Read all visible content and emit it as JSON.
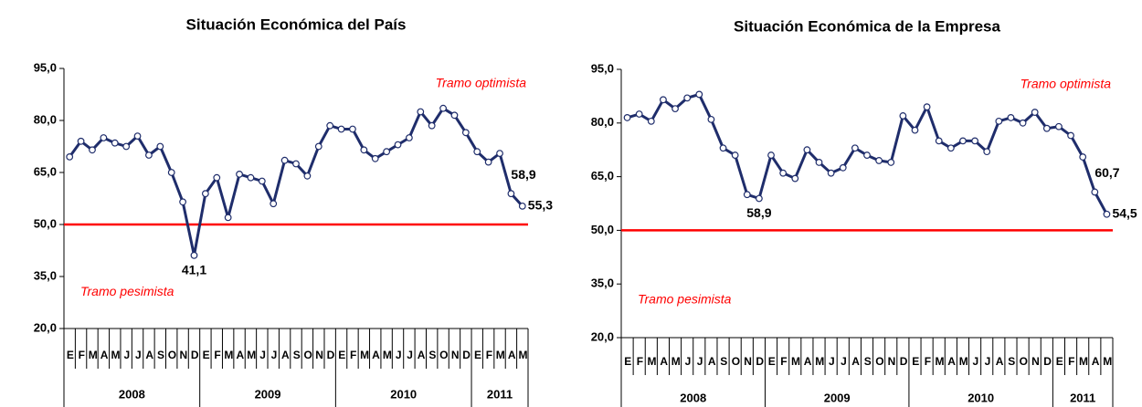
{
  "chart_data": [
    {
      "type": "line",
      "title": "Situación Económica del País",
      "category_groups": [
        {
          "label": "2008",
          "categories": [
            "E",
            "F",
            "M",
            "A",
            "M",
            "J",
            "J",
            "A",
            "S",
            "O",
            "N",
            "D"
          ]
        },
        {
          "label": "2009",
          "categories": [
            "E",
            "F",
            "M",
            "A",
            "M",
            "J",
            "J",
            "A",
            "S",
            "O",
            "N",
            "D"
          ]
        },
        {
          "label": "2010",
          "categories": [
            "E",
            "F",
            "M",
            "A",
            "M",
            "J",
            "J",
            "A",
            "S",
            "O",
            "N",
            "D"
          ]
        },
        {
          "label": "2011",
          "categories": [
            "E",
            "F",
            "M",
            "A",
            "M"
          ]
        }
      ],
      "values": [
        69.5,
        74,
        71.5,
        75,
        73.5,
        72.5,
        75.5,
        70,
        72.5,
        65,
        56.5,
        41.1,
        58.9,
        63.5,
        52,
        64.5,
        63.5,
        62.5,
        56,
        68.5,
        67.5,
        64,
        72.5,
        78.5,
        77.5,
        77.5,
        71.5,
        69,
        71,
        73,
        75,
        82.5,
        78.5,
        83.5,
        81.5,
        76.5,
        71,
        68,
        70.5,
        58.9,
        55.3
      ],
      "value_labels": [
        null,
        null,
        null,
        null,
        null,
        null,
        null,
        null,
        null,
        null,
        null,
        "41,1",
        null,
        null,
        null,
        null,
        null,
        null,
        null,
        null,
        null,
        null,
        null,
        null,
        null,
        null,
        null,
        null,
        null,
        null,
        null,
        null,
        null,
        null,
        null,
        null,
        null,
        null,
        null,
        "58,9",
        "55,3"
      ],
      "color": "#1f2d6b",
      "ylim": [
        20,
        95
      ],
      "yticks": [
        {
          "value": 20,
          "label": "20,0"
        },
        {
          "value": 35,
          "label": "35,0"
        },
        {
          "value": 50,
          "label": "50,0"
        },
        {
          "value": 65,
          "label": "65,0"
        },
        {
          "value": 80,
          "label": "80,0"
        },
        {
          "value": 95,
          "label": "95,0"
        }
      ],
      "reference_line": {
        "value": 50,
        "color": "#ff0000"
      },
      "annotations": [
        "Tramo optimista",
        "Tramo pesimista"
      ]
    },
    {
      "type": "line",
      "title": "Situación Económica de la Empresa",
      "category_groups": [
        {
          "label": "2008",
          "categories": [
            "E",
            "F",
            "M",
            "A",
            "M",
            "J",
            "J",
            "A",
            "S",
            "O",
            "N",
            "D"
          ]
        },
        {
          "label": "2009",
          "categories": [
            "E",
            "F",
            "M",
            "A",
            "M",
            "J",
            "J",
            "A",
            "S",
            "O",
            "N",
            "D"
          ]
        },
        {
          "label": "2010",
          "categories": [
            "E",
            "F",
            "M",
            "A",
            "M",
            "J",
            "J",
            "A",
            "S",
            "O",
            "N",
            "D"
          ]
        },
        {
          "label": "2011",
          "categories": [
            "E",
            "F",
            "M",
            "A",
            "M"
          ]
        }
      ],
      "values": [
        81.5,
        82.5,
        80.5,
        86.5,
        84,
        87,
        88,
        81,
        73,
        71,
        60,
        58.9,
        71,
        66,
        64.5,
        72.5,
        69,
        66,
        67.5,
        73,
        71,
        69.5,
        69,
        82,
        78,
        84.5,
        75,
        73,
        75,
        75,
        72,
        80.5,
        81.5,
        80,
        83,
        78.5,
        79,
        76.5,
        70.5,
        60.7,
        54.5
      ],
      "value_labels": [
        null,
        null,
        null,
        null,
        null,
        null,
        null,
        null,
        null,
        null,
        null,
        "58,9",
        null,
        null,
        null,
        null,
        null,
        null,
        null,
        null,
        null,
        null,
        null,
        null,
        null,
        null,
        null,
        null,
        null,
        null,
        null,
        null,
        null,
        null,
        null,
        null,
        null,
        null,
        null,
        "60,7",
        "54,5"
      ],
      "color": "#1f2d6b",
      "ylim": [
        20,
        95
      ],
      "yticks": [
        {
          "value": 20,
          "label": "20,0"
        },
        {
          "value": 35,
          "label": "35,0"
        },
        {
          "value": 50,
          "label": "50,0"
        },
        {
          "value": 65,
          "label": "65,0"
        },
        {
          "value": 80,
          "label": "80,0"
        },
        {
          "value": 95,
          "label": "95,0"
        }
      ],
      "reference_line": {
        "value": 50,
        "color": "#ff0000"
      },
      "annotations": [
        "Tramo optimista",
        "Tramo pesimista"
      ]
    }
  ]
}
